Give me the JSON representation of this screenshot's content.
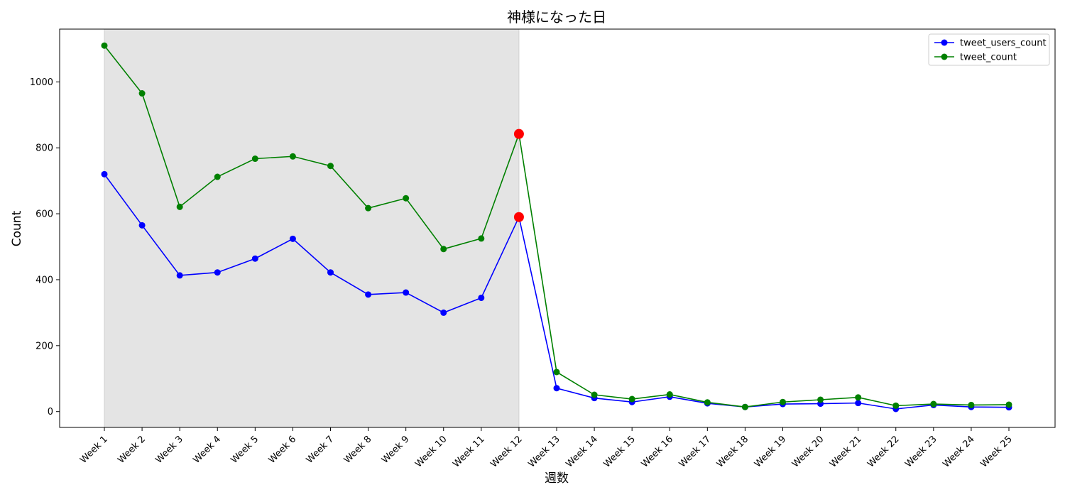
{
  "chart_data": {
    "type": "line",
    "title": "神様になった日",
    "xlabel": "週数",
    "ylabel": "Count",
    "categories": [
      "Week 1",
      "Week 2",
      "Week 3",
      "Week 4",
      "Week 5",
      "Week 6",
      "Week 7",
      "Week 8",
      "Week 9",
      "Week 10",
      "Week 11",
      "Week 12",
      "Week 13",
      "Week 14",
      "Week 15",
      "Week 16",
      "Week 17",
      "Week 18",
      "Week 19",
      "Week 20",
      "Week 21",
      "Week 22",
      "Week 23",
      "Week 24",
      "Week 25"
    ],
    "series": [
      {
        "name": "tweet_users_count",
        "color": "#0000ff",
        "values": [
          720,
          565,
          413,
          422,
          464,
          524,
          422,
          355,
          361,
          300,
          345,
          590,
          71,
          41,
          29,
          45,
          25,
          14,
          23,
          24,
          26,
          8,
          20,
          14,
          13
        ]
      },
      {
        "name": "tweet_count",
        "color": "#008000",
        "values": [
          1110,
          965,
          621,
          712,
          767,
          774,
          745,
          617,
          647,
          493,
          525,
          842,
          120,
          51,
          38,
          52,
          28,
          14,
          29,
          36,
          43,
          18,
          23,
          20,
          21
        ]
      }
    ],
    "ylim": [
      -48,
      1160
    ],
    "yticks": [
      0,
      200,
      400,
      600,
      800,
      1000
    ],
    "shaded_region": {
      "from": "Week 1",
      "to": "Week 12",
      "color": "#e4e4e4"
    },
    "highlight_points": [
      {
        "category": "Week 12",
        "series": "tweet_count",
        "color": "#ff0000"
      },
      {
        "category": "Week 12",
        "series": "tweet_users_count",
        "color": "#ff0000"
      }
    ],
    "legend_position": "top-right",
    "grid": false
  }
}
